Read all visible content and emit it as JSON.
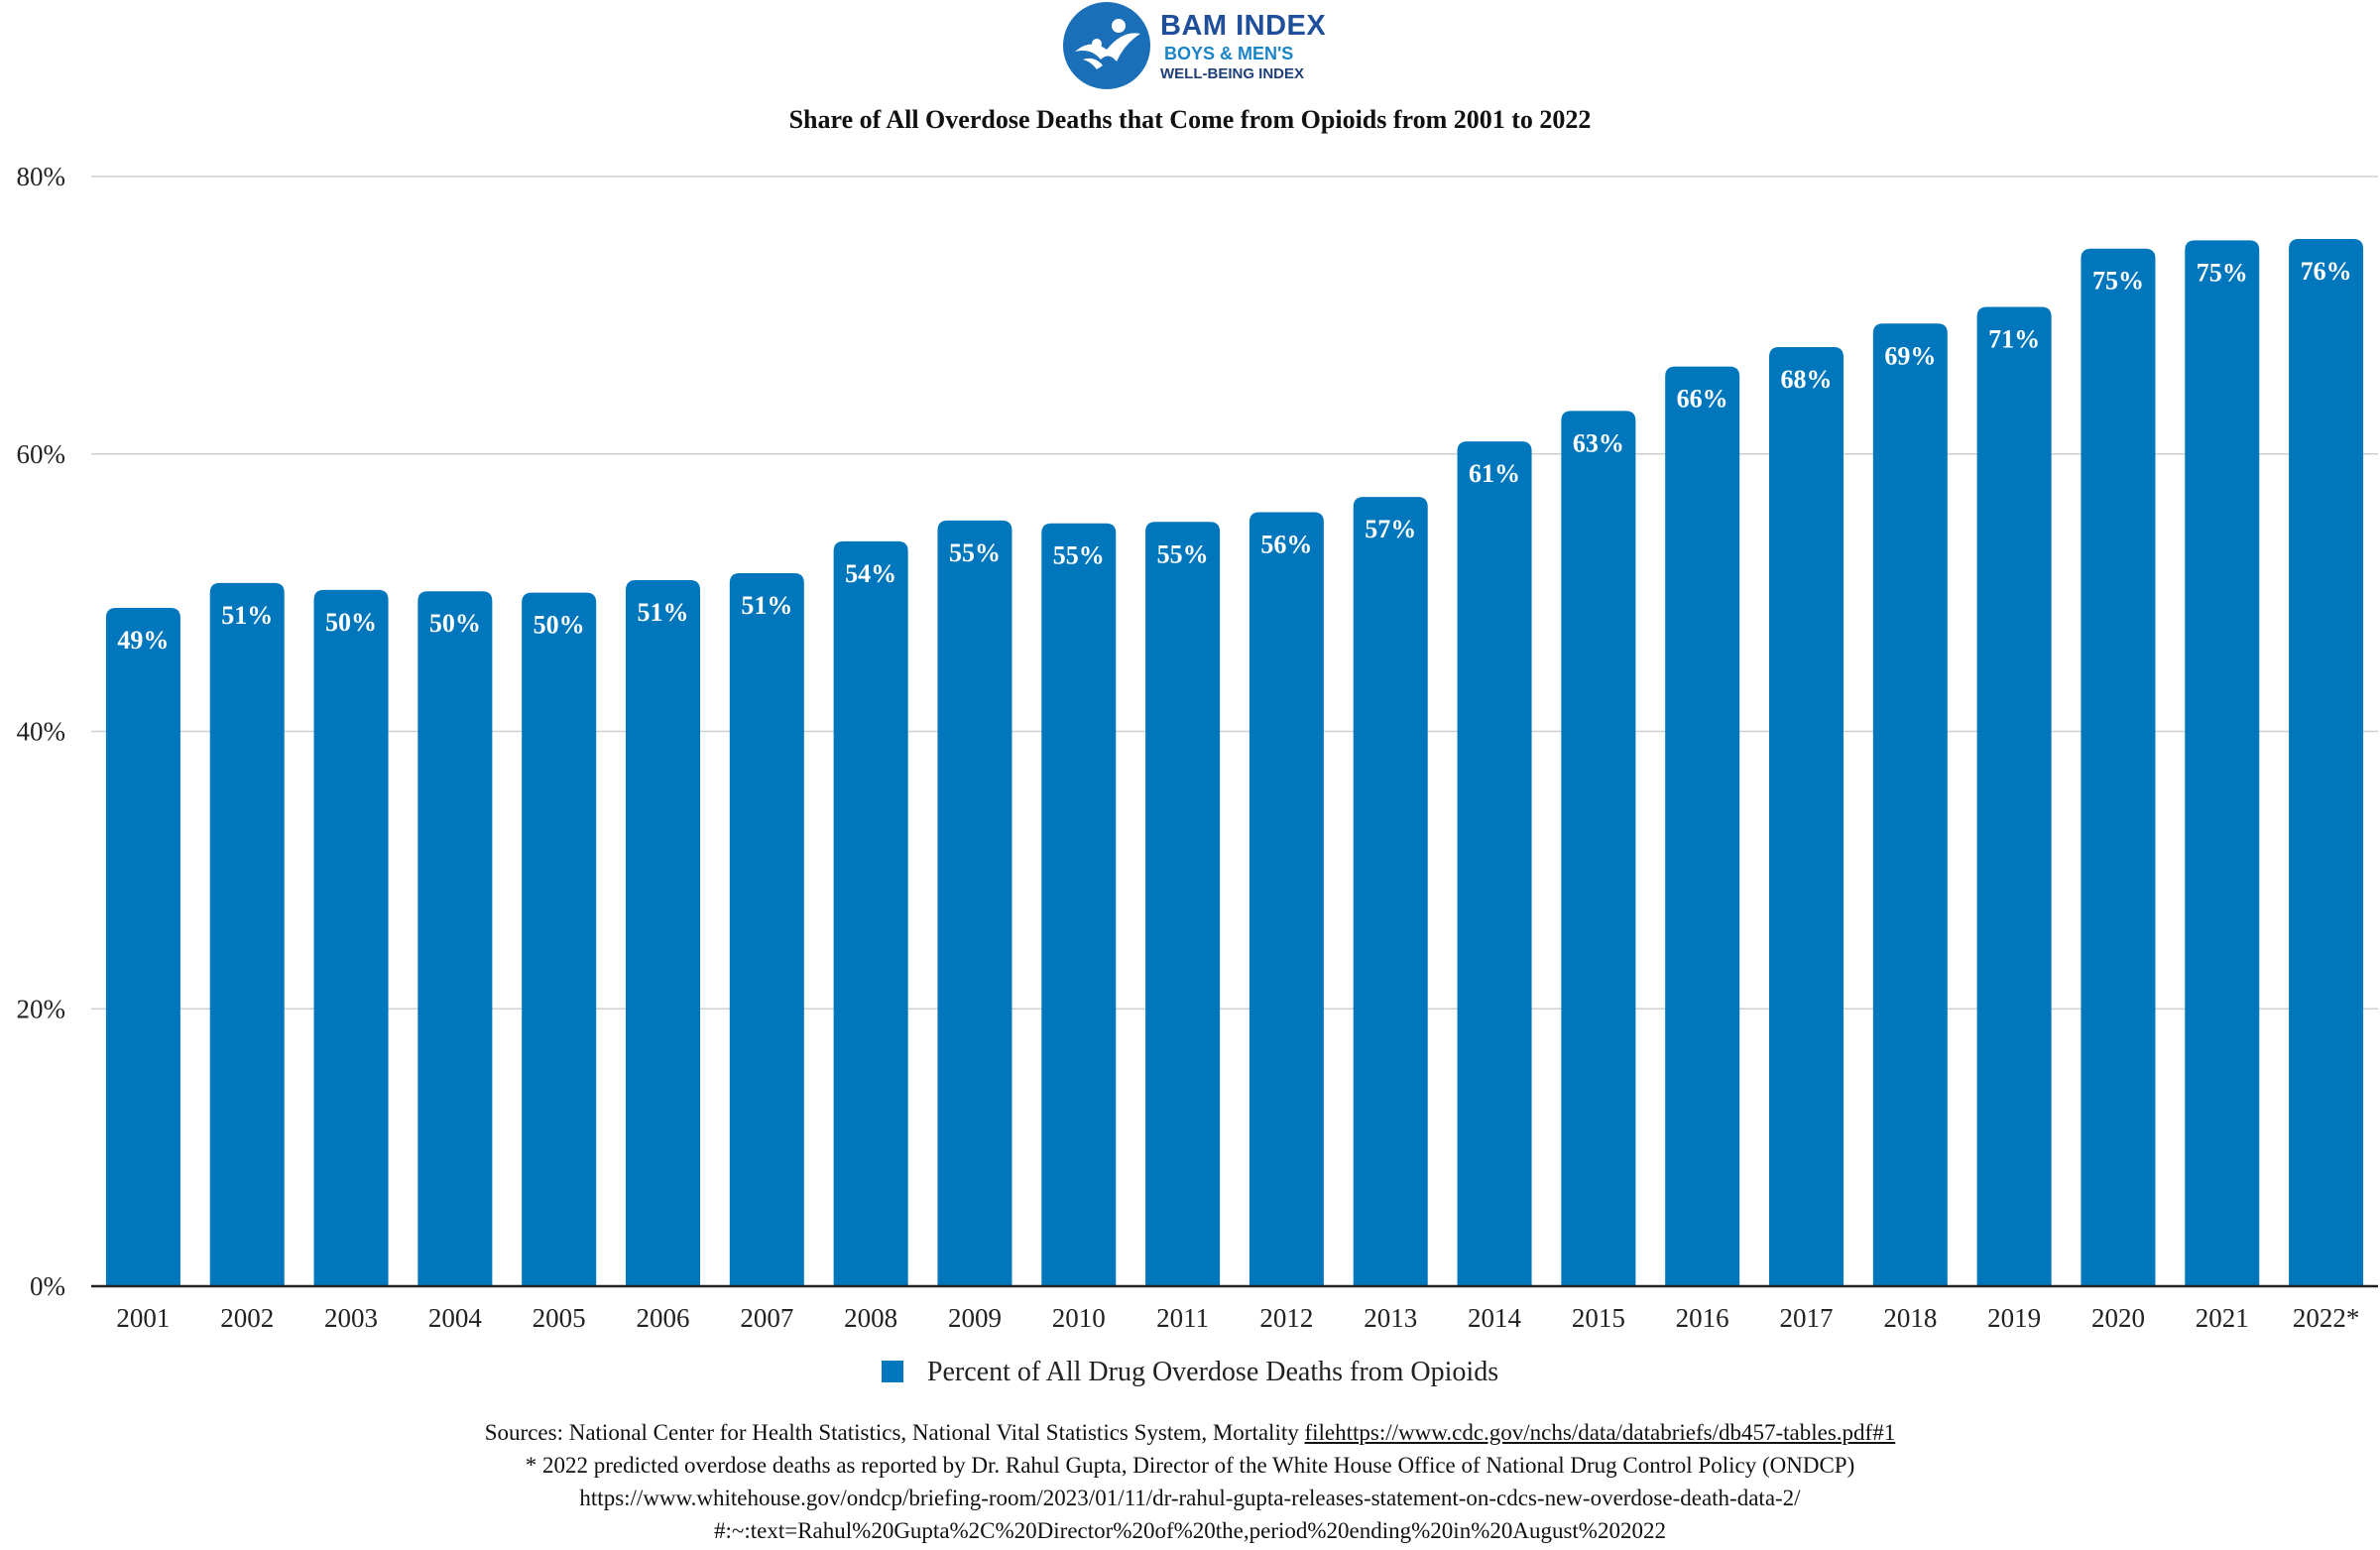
{
  "header": {
    "brand_main": "BAM INDEX",
    "brand_sub1": "BOYS & MEN'S",
    "brand_sub2": "WELL-BEING INDEX",
    "logo_icon": "figures-circle-logo"
  },
  "colors": {
    "bar": "#0077bd",
    "grid": "#cfcfcf",
    "axis": "#222222",
    "logo_circle": "#1a6fb8"
  },
  "chart_data": {
    "type": "bar",
    "title": "Share of All Overdose Deaths that Come from Opioids from 2001 to 2022",
    "categories": [
      "2001",
      "2002",
      "2003",
      "2004",
      "2005",
      "2006",
      "2007",
      "2008",
      "2009",
      "2010",
      "2011",
      "2012",
      "2013",
      "2014",
      "2015",
      "2016",
      "2017",
      "2018",
      "2019",
      "2020",
      "2021",
      "2022*"
    ],
    "series": [
      {
        "name": "Percent of All Drug Overdose Deaths from Opioids",
        "values": [
          48.9,
          50.7,
          50.2,
          50.1,
          50.0,
          50.9,
          51.4,
          53.7,
          55.2,
          55.0,
          55.1,
          55.8,
          56.9,
          60.9,
          63.1,
          66.3,
          67.7,
          69.4,
          70.6,
          74.8,
          75.4,
          75.5
        ],
        "labels": [
          "49%",
          "51%",
          "50%",
          "50%",
          "50%",
          "51%",
          "51%",
          "54%",
          "55%",
          "55%",
          "55%",
          "56%",
          "57%",
          "61%",
          "63%",
          "66%",
          "68%",
          "69%",
          "71%",
          "75%",
          "75%",
          "76%"
        ]
      }
    ],
    "ylim": [
      0,
      80
    ],
    "yticks": [
      0,
      20,
      40,
      60,
      80
    ],
    "ytick_labels": [
      "0%",
      "20%",
      "40%",
      "60%",
      "80%"
    ],
    "grid": true,
    "legend_position": "bottom-center"
  },
  "legend": {
    "label": "Percent of All Drug Overdose Deaths from Opioids"
  },
  "notes": {
    "line1_prefix": "Sources: National Center for Health Statistics, National Vital Statistics System, Mortality ",
    "line1_link": "filehttps://www.cdc.gov/nchs/data/databriefs/db457-tables.pdf#1",
    "line2": "* 2022 predicted overdose deaths as reported by Dr. Rahul Gupta, Director of the White House Office of National Drug Control Policy (ONDCP)",
    "line3": "https://www.whitehouse.gov/ondcp/briefing-room/2023/01/11/dr-rahul-gupta-releases-statement-on-cdcs-new-overdose-death-data-2/",
    "line4": "#:~:text=Rahul%20Gupta%2C%20Director%20of%20the,period%20ending%20in%20August%202022"
  }
}
